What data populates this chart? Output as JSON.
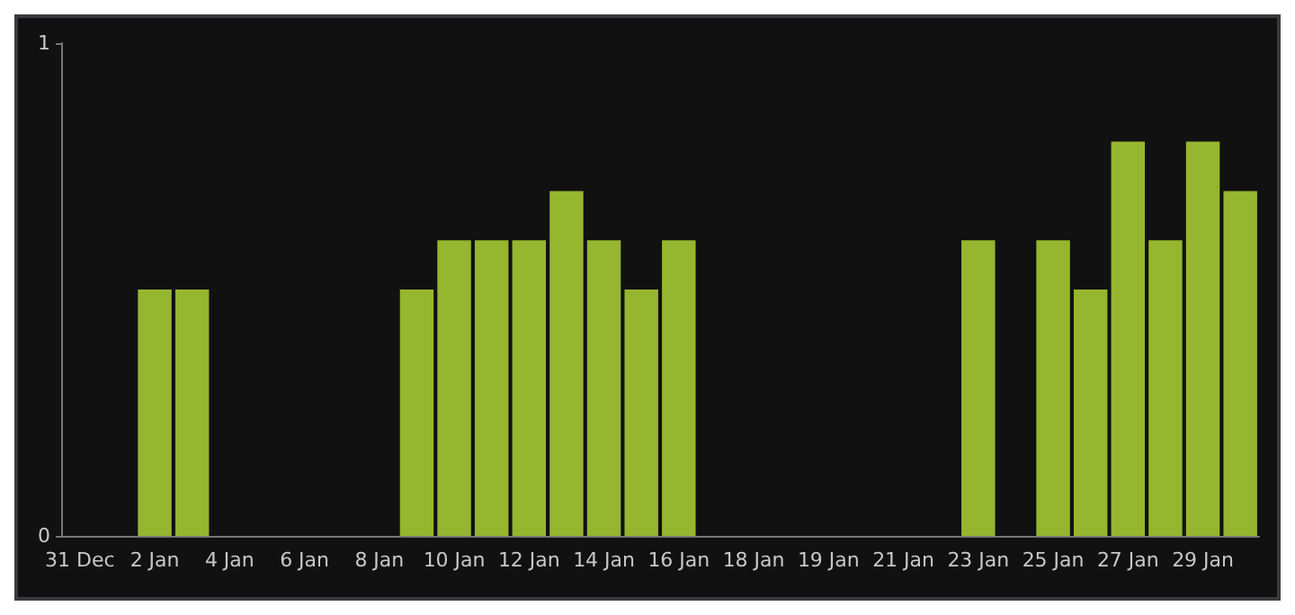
{
  "chart_data": {
    "type": "bar",
    "categories": [
      "31 Dec",
      null,
      "2 Jan",
      null,
      "4 Jan",
      null,
      "6 Jan",
      null,
      "8 Jan",
      null,
      "10 Jan",
      null,
      "12 Jan",
      null,
      "14 Jan",
      null,
      "16 Jan",
      null,
      "18 Jan",
      null,
      "19 Jan",
      null,
      "21 Jan",
      null,
      "23 Jan",
      null,
      "25 Jan",
      null,
      "27 Jan",
      null,
      "29 Jan",
      null
    ],
    "values": [
      null,
      null,
      0.5,
      0.5,
      null,
      null,
      null,
      null,
      null,
      0.5,
      0.6,
      0.6,
      0.6,
      0.7,
      0.6,
      0.5,
      0.6,
      null,
      null,
      null,
      null,
      null,
      null,
      null,
      0.6,
      null,
      0.6,
      0.5,
      0.8,
      0.6,
      0.8,
      0.7
    ],
    "color": "#96b62f",
    "ylim": [
      0,
      1
    ],
    "yticks": [
      0,
      1
    ],
    "grid": false
  }
}
